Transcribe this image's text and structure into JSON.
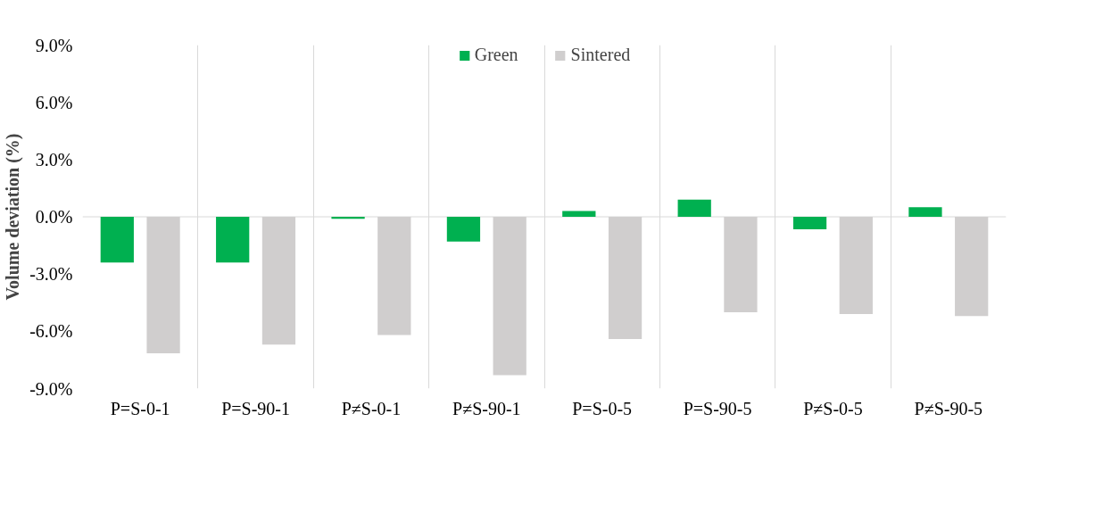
{
  "chart_data": {
    "type": "bar",
    "ylabel": "Volume deviation (%)",
    "categories": [
      "P=S-0-1",
      "P=S-90-1",
      "P≠S-0-1",
      "P≠S-90-1",
      "P=S-0-5",
      "P=S-90-5",
      "P≠S-0-5",
      "P≠S-90-5"
    ],
    "series": [
      {
        "name": "Green",
        "color": "#00b050",
        "values": [
          -2.4,
          -2.4,
          -0.1,
          -1.3,
          0.3,
          0.9,
          -0.65,
          0.5
        ]
      },
      {
        "name": "Sintered",
        "color": "#d0cece",
        "values": [
          -7.15,
          -6.7,
          -6.2,
          -8.3,
          -6.4,
          -5.0,
          -5.1,
          -5.2
        ]
      }
    ],
    "ylim": [
      -9,
      9
    ],
    "yticks": [
      {
        "value": -9,
        "label": "-9.0%"
      },
      {
        "value": -6,
        "label": "-6.0%"
      },
      {
        "value": -3,
        "label": "-3.0%"
      },
      {
        "value": 0,
        "label": "0.0%"
      },
      {
        "value": 3,
        "label": "3.0%"
      },
      {
        "value": 6,
        "label": "6.0%"
      },
      {
        "value": 9,
        "label": "9.0%"
      }
    ],
    "ref_lines": [
      {
        "axis": "y",
        "value": 0,
        "color": "#d9d9d9"
      }
    ],
    "grid": "x",
    "legend": "top"
  }
}
